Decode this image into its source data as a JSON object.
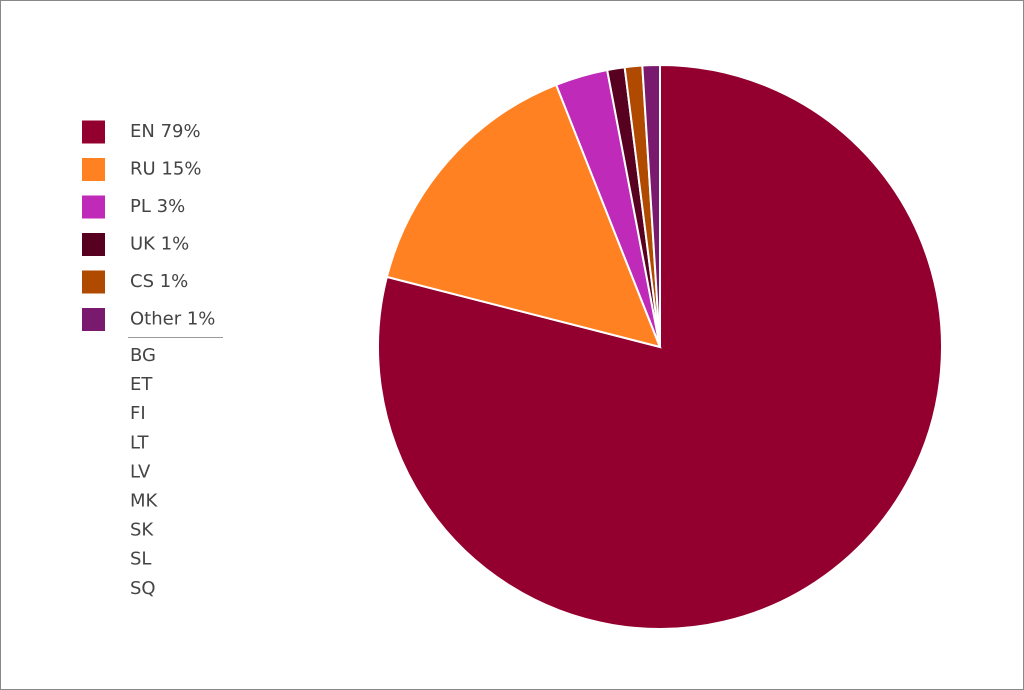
{
  "chart_data": {
    "type": "pie",
    "categories": [
      "EN",
      "RU",
      "PL",
      "UK",
      "CS",
      "Other"
    ],
    "values": [
      79,
      15,
      3,
      1,
      1,
      1
    ],
    "value_labels": [
      "79%",
      "15%",
      "3%",
      "1%",
      "1%",
      "1%"
    ],
    "colors": [
      "#930030",
      "#ff8122",
      "#c02ab8",
      "#580020",
      "#b04a00",
      "#7a1a6e"
    ],
    "other_members": [
      "BG",
      "ET",
      "FI",
      "LT",
      "LV",
      "MK",
      "SK",
      "SL",
      "SQ"
    ]
  }
}
